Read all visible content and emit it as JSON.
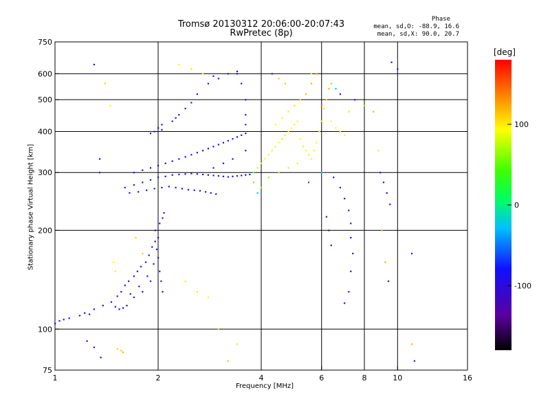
{
  "header": {
    "title_line1": "Tromsø 20130312 20:06:00-20:07:43",
    "title_line2": "RwPretec (8p)",
    "phase_title": "Phase",
    "phase_stat_o": "mean, sd,O: -88.9, 16.6",
    "phase_stat_x": "mean, sd,X:  90.0, 20.7"
  },
  "chart_data": {
    "type": "scatter",
    "title": "Tromsø 20130312 20:06:00-20:07:43",
    "subtitle": "RwPretec (8p)",
    "xlabel": "Frequency [MHz]",
    "ylabel": "Stationary phase Virtual Height [km]",
    "xscale": "log",
    "yscale": "log",
    "xlim": [
      1,
      16
    ],
    "ylim": [
      75,
      750
    ],
    "x_ticks": [
      1,
      2,
      4,
      6,
      8,
      10,
      16
    ],
    "y_ticks": [
      75,
      100,
      200,
      300,
      400,
      500,
      600,
      750
    ],
    "x_grid": [
      2,
      4,
      6,
      8,
      10
    ],
    "y_grid": [
      100,
      200,
      300,
      400,
      500,
      600
    ],
    "grid": true,
    "colorbar": {
      "label": "[deg]",
      "range": [
        -180,
        180
      ],
      "ticks": [
        100,
        0,
        -100
      ],
      "colormap": "rainbow",
      "placement": "right"
    },
    "series": [
      {
        "columns": [
          "freq_mhz",
          "height_km",
          "phase_deg"
        ],
        "points": [
          [
            1.0,
            104,
            -80
          ],
          [
            1.03,
            106,
            -85
          ],
          [
            1.06,
            107,
            -90
          ],
          [
            1.1,
            108,
            -82
          ],
          [
            1.18,
            110,
            -88
          ],
          [
            1.22,
            112,
            -84
          ],
          [
            1.26,
            111,
            -80
          ],
          [
            1.3,
            115,
            -92
          ],
          [
            1.38,
            118,
            -86
          ],
          [
            1.46,
            121,
            -80
          ],
          [
            1.52,
            126,
            -88
          ],
          [
            1.56,
            130,
            -90
          ],
          [
            1.6,
            136,
            -85
          ],
          [
            1.64,
            140,
            -92
          ],
          [
            1.7,
            145,
            -86
          ],
          [
            1.74,
            150,
            -90
          ],
          [
            1.78,
            155,
            -84
          ],
          [
            1.84,
            160,
            -88
          ],
          [
            1.88,
            168,
            -92
          ],
          [
            1.92,
            178,
            -86
          ],
          [
            1.96,
            185,
            -90
          ],
          [
            1.98,
            175,
            -88
          ],
          [
            2.0,
            165,
            -84
          ],
          [
            2.02,
            150,
            -90
          ],
          [
            2.04,
            140,
            -86
          ],
          [
            2.06,
            130,
            -92
          ],
          [
            1.9,
            140,
            -88
          ],
          [
            1.8,
            130,
            -84
          ],
          [
            1.7,
            125,
            -90
          ],
          [
            1.62,
            118,
            -86
          ],
          [
            1.58,
            116,
            -88
          ],
          [
            1.54,
            115,
            -92
          ],
          [
            1.5,
            117,
            -80
          ],
          [
            1.66,
            128,
            -86
          ],
          [
            1.76,
            135,
            -90
          ],
          [
            1.86,
            145,
            -88
          ],
          [
            1.94,
            158,
            -84
          ],
          [
            2.0,
            190,
            -86
          ],
          [
            1.96,
            200,
            -90
          ],
          [
            2.02,
            210,
            -84
          ],
          [
            2.06,
            218,
            -88
          ],
          [
            2.08,
            226,
            -92
          ],
          [
            1.6,
            270,
            -90
          ],
          [
            1.7,
            275,
            -86
          ],
          [
            1.8,
            280,
            -88
          ],
          [
            1.9,
            285,
            -84
          ],
          [
            2.0,
            290,
            -92
          ],
          [
            2.1,
            292,
            -86
          ],
          [
            2.2,
            295,
            -90
          ],
          [
            2.3,
            296,
            -88
          ],
          [
            2.4,
            297,
            -84
          ],
          [
            2.5,
            298,
            -90
          ],
          [
            2.6,
            297,
            -86
          ],
          [
            2.7,
            296,
            -92
          ],
          [
            2.8,
            295,
            -88
          ],
          [
            2.9,
            294,
            -86
          ],
          [
            3.0,
            293,
            -90
          ],
          [
            3.1,
            292,
            -84
          ],
          [
            3.2,
            291,
            -88
          ],
          [
            3.3,
            292,
            -90
          ],
          [
            3.4,
            293,
            -86
          ],
          [
            3.5,
            294,
            -92
          ],
          [
            3.6,
            295,
            -88
          ],
          [
            3.7,
            296,
            -84
          ],
          [
            1.65,
            260,
            -88
          ],
          [
            1.75,
            262,
            -92
          ],
          [
            1.85,
            265,
            -86
          ],
          [
            1.95,
            268,
            -90
          ],
          [
            2.05,
            270,
            -84
          ],
          [
            2.15,
            272,
            -88
          ],
          [
            2.25,
            270,
            -92
          ],
          [
            2.35,
            268,
            -86
          ],
          [
            2.45,
            266,
            -90
          ],
          [
            2.55,
            265,
            -84
          ],
          [
            2.65,
            264,
            -88
          ],
          [
            2.75,
            262,
            -92
          ],
          [
            2.85,
            260,
            -86
          ],
          [
            2.95,
            258,
            -90
          ],
          [
            1.7,
            300,
            -84
          ],
          [
            1.8,
            305,
            -88
          ],
          [
            1.9,
            310,
            -92
          ],
          [
            2.0,
            315,
            -86
          ],
          [
            2.1,
            320,
            -90
          ],
          [
            2.2,
            325,
            -84
          ],
          [
            2.3,
            330,
            -88
          ],
          [
            2.4,
            335,
            -92
          ],
          [
            2.5,
            340,
            -86
          ],
          [
            2.6,
            345,
            -90
          ],
          [
            2.7,
            350,
            -84
          ],
          [
            2.8,
            355,
            -88
          ],
          [
            2.9,
            360,
            -92
          ],
          [
            3.0,
            365,
            -86
          ],
          [
            3.1,
            370,
            -90
          ],
          [
            3.2,
            375,
            -84
          ],
          [
            3.3,
            380,
            -88
          ],
          [
            3.4,
            385,
            -92
          ],
          [
            3.5,
            390,
            -86
          ],
          [
            3.6,
            395,
            -90
          ],
          [
            1.95,
            400,
            -90
          ],
          [
            2.0,
            410,
            -86
          ],
          [
            2.05,
            405,
            -88
          ],
          [
            1.9,
            395,
            -92
          ],
          [
            2.05,
            420,
            -84
          ],
          [
            2.2,
            430,
            -88
          ],
          [
            2.25,
            440,
            -90
          ],
          [
            2.3,
            450,
            -86
          ],
          [
            2.4,
            470,
            -92
          ],
          [
            2.5,
            490,
            -88
          ],
          [
            2.6,
            520,
            -86
          ],
          [
            2.8,
            560,
            -90
          ],
          [
            3.0,
            580,
            -84
          ],
          [
            3.2,
            600,
            -88
          ],
          [
            3.4,
            610,
            -90
          ],
          [
            3.6,
            500,
            -86
          ],
          [
            3.6,
            450,
            -92
          ],
          [
            3.6,
            420,
            -88
          ],
          [
            3.6,
            350,
            -84
          ],
          [
            3.3,
            330,
            -90
          ],
          [
            3.1,
            320,
            -86
          ],
          [
            2.9,
            310,
            -88
          ],
          [
            3.8,
            300,
            60
          ],
          [
            3.9,
            310,
            80
          ],
          [
            4.0,
            320,
            90
          ],
          [
            4.1,
            330,
            95
          ],
          [
            4.2,
            340,
            100
          ],
          [
            4.3,
            350,
            85
          ],
          [
            4.4,
            360,
            90
          ],
          [
            4.5,
            370,
            95
          ],
          [
            4.6,
            380,
            80
          ],
          [
            4.7,
            390,
            88
          ],
          [
            4.8,
            400,
            92
          ],
          [
            4.9,
            410,
            96
          ],
          [
            5.0,
            420,
            84
          ],
          [
            5.1,
            430,
            90
          ],
          [
            5.2,
            380,
            95
          ],
          [
            5.3,
            360,
            86
          ],
          [
            5.4,
            350,
            90
          ],
          [
            5.5,
            340,
            82
          ],
          [
            5.6,
            330,
            94
          ],
          [
            5.7,
            350,
            88
          ],
          [
            5.8,
            370,
            92
          ],
          [
            5.9,
            400,
            86
          ],
          [
            6.0,
            430,
            90
          ],
          [
            6.1,
            470,
            84
          ],
          [
            6.2,
            500,
            110
          ],
          [
            6.3,
            540,
            120
          ],
          [
            4.2,
            290,
            70
          ],
          [
            4.5,
            300,
            75
          ],
          [
            4.8,
            310,
            80
          ],
          [
            5.1,
            320,
            85
          ],
          [
            4.0,
            270,
            60
          ],
          [
            3.8,
            280,
            55
          ],
          [
            3.9,
            260,
            -20
          ],
          [
            5.5,
            280,
            -60
          ],
          [
            6.0,
            300,
            -20
          ],
          [
            4.4,
            420,
            90
          ],
          [
            4.6,
            440,
            95
          ],
          [
            4.8,
            460,
            100
          ],
          [
            5.0,
            480,
            105
          ],
          [
            5.2,
            500,
            110
          ],
          [
            5.4,
            520,
            115
          ],
          [
            5.6,
            560,
            120
          ],
          [
            6.4,
            430,
            95
          ],
          [
            6.6,
            410,
            90
          ],
          [
            6.8,
            400,
            85
          ],
          [
            7.0,
            390,
            90
          ],
          [
            7.2,
            460,
            80
          ],
          [
            7.5,
            500,
            -90
          ],
          [
            8.0,
            480,
            60
          ],
          [
            8.5,
            460,
            120
          ],
          [
            6.5,
            290,
            -90
          ],
          [
            6.8,
            270,
            -88
          ],
          [
            7.0,
            250,
            -92
          ],
          [
            7.2,
            230,
            -86
          ],
          [
            7.3,
            210,
            -90
          ],
          [
            7.3,
            190,
            -88
          ],
          [
            7.4,
            170,
            -84
          ],
          [
            7.3,
            150,
            -90
          ],
          [
            7.2,
            130,
            -92
          ],
          [
            7.0,
            120,
            -86
          ],
          [
            6.2,
            220,
            -90
          ],
          [
            6.3,
            200,
            -88
          ],
          [
            6.4,
            180,
            -86
          ],
          [
            8.9,
            300,
            -90
          ],
          [
            9.1,
            280,
            -88
          ],
          [
            9.3,
            260,
            -86
          ],
          [
            9.5,
            240,
            -92
          ],
          [
            9.0,
            200,
            120
          ],
          [
            9.2,
            160,
            120
          ],
          [
            9.4,
            140,
            -90
          ],
          [
            8.8,
            350,
            100
          ],
          [
            9.6,
            650,
            -90
          ],
          [
            10.0,
            620,
            -90
          ],
          [
            11.0,
            170,
            -90
          ],
          [
            11.2,
            80,
            -88
          ],
          [
            11.0,
            90,
            120
          ],
          [
            1.24,
            92,
            -100
          ],
          [
            1.3,
            88,
            -100
          ],
          [
            1.36,
            82,
            -95
          ],
          [
            1.52,
            87,
            110
          ],
          [
            1.56,
            86,
            115
          ],
          [
            1.58,
            85,
            120
          ],
          [
            1.5,
            150,
            100
          ],
          [
            1.48,
            160,
            95
          ],
          [
            1.72,
            190,
            110
          ],
          [
            1.8,
            170,
            115
          ],
          [
            2.4,
            140,
            100
          ],
          [
            2.6,
            130,
            105
          ],
          [
            2.8,
            125,
            90
          ],
          [
            3.0,
            100,
            110
          ],
          [
            3.2,
            80,
            115
          ],
          [
            3.4,
            90,
            100
          ],
          [
            1.3,
            640,
            -80
          ],
          [
            1.4,
            560,
            110
          ],
          [
            1.45,
            480,
            95
          ],
          [
            1.35,
            330,
            -100
          ],
          [
            1.35,
            300,
            -120
          ],
          [
            2.3,
            640,
            100
          ],
          [
            2.5,
            620,
            105
          ],
          [
            2.7,
            600,
            95
          ],
          [
            2.9,
            590,
            -80
          ],
          [
            3.4,
            600,
            -90
          ],
          [
            3.5,
            560,
            -95
          ],
          [
            4.3,
            600,
            -100
          ],
          [
            4.5,
            580,
            110
          ],
          [
            4.7,
            560,
            115
          ],
          [
            5.8,
            600,
            130
          ],
          [
            5.6,
            600,
            100
          ],
          [
            6.4,
            560,
            60
          ],
          [
            6.6,
            540,
            -30
          ],
          [
            6.8,
            520,
            -80
          ],
          [
            6.0,
            480,
            140
          ]
        ]
      }
    ]
  }
}
